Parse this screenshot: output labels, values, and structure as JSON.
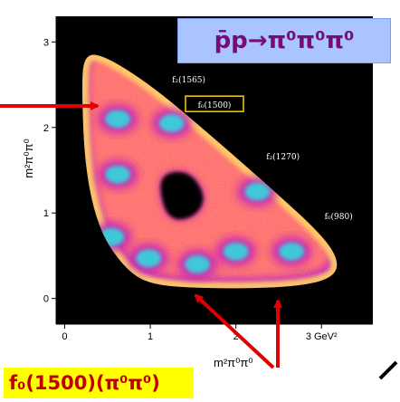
{
  "chart_data": {
    "type": "heatmap",
    "title": "",
    "xlabel": "m²π⁰π⁰",
    "ylabel": "m²π⁰π⁰",
    "x_ticks": [
      "0",
      "1",
      "2",
      "3 GeV²"
    ],
    "y_ticks": [
      "0",
      "1",
      "2",
      "3"
    ],
    "xlim": [
      -0.1,
      3.6
    ],
    "ylim": [
      -0.3,
      3.3
    ],
    "grid": false,
    "background": "#000000",
    "colors": {
      "low": "#c01cc0",
      "mid": "#ff7070",
      "high": "#ffd060",
      "peak": "#40c8d8",
      "text": "#ffffff"
    },
    "dalitz_boundary": [
      [
        0.22,
        2.85
      ],
      [
        0.2,
        2.4
      ],
      [
        0.24,
        1.5
      ],
      [
        0.4,
        0.8
      ],
      [
        0.7,
        0.35
      ],
      [
        1.0,
        0.16
      ],
      [
        1.6,
        0.12
      ],
      [
        2.3,
        0.12
      ],
      [
        2.85,
        0.16
      ],
      [
        3.15,
        0.26
      ],
      [
        3.2,
        0.45
      ],
      [
        3.0,
        0.75
      ],
      [
        2.4,
        1.3
      ],
      [
        1.6,
        2.0
      ],
      [
        1.0,
        2.5
      ],
      [
        0.45,
        2.85
      ]
    ],
    "depletion_region": [
      [
        1.1,
        1.45
      ],
      [
        1.45,
        1.5
      ],
      [
        1.65,
        1.2
      ],
      [
        1.55,
        0.98
      ],
      [
        1.3,
        0.9
      ],
      [
        1.15,
        1.05
      ]
    ],
    "peaks": [
      {
        "x": 0.62,
        "y": 2.1
      },
      {
        "x": 0.62,
        "y": 1.45
      },
      {
        "x": 0.55,
        "y": 0.72
      },
      {
        "x": 0.98,
        "y": 0.47
      },
      {
        "x": 2.0,
        "y": 0.55
      },
      {
        "x": 2.65,
        "y": 0.55
      },
      {
        "x": 1.25,
        "y": 2.05
      },
      {
        "x": 2.25,
        "y": 1.25
      },
      {
        "x": 1.55,
        "y": 0.4
      }
    ],
    "annotations": [
      {
        "text": "f₂(1565)",
        "x": 1.45,
        "y": 2.55,
        "boxed": false
      },
      {
        "text": "f₀(1500)",
        "x": 1.75,
        "y": 2.25,
        "boxed": true
      },
      {
        "text": "f₂(1270)",
        "x": 2.55,
        "y": 1.65,
        "boxed": false
      },
      {
        "text": "f₀(980)",
        "x": 3.2,
        "y": 0.95,
        "boxed": false
      }
    ]
  },
  "labels": {
    "reaction": "p̄p→π⁰π⁰π⁰",
    "resonance": "f₀(1500)(π⁰π⁰)"
  }
}
